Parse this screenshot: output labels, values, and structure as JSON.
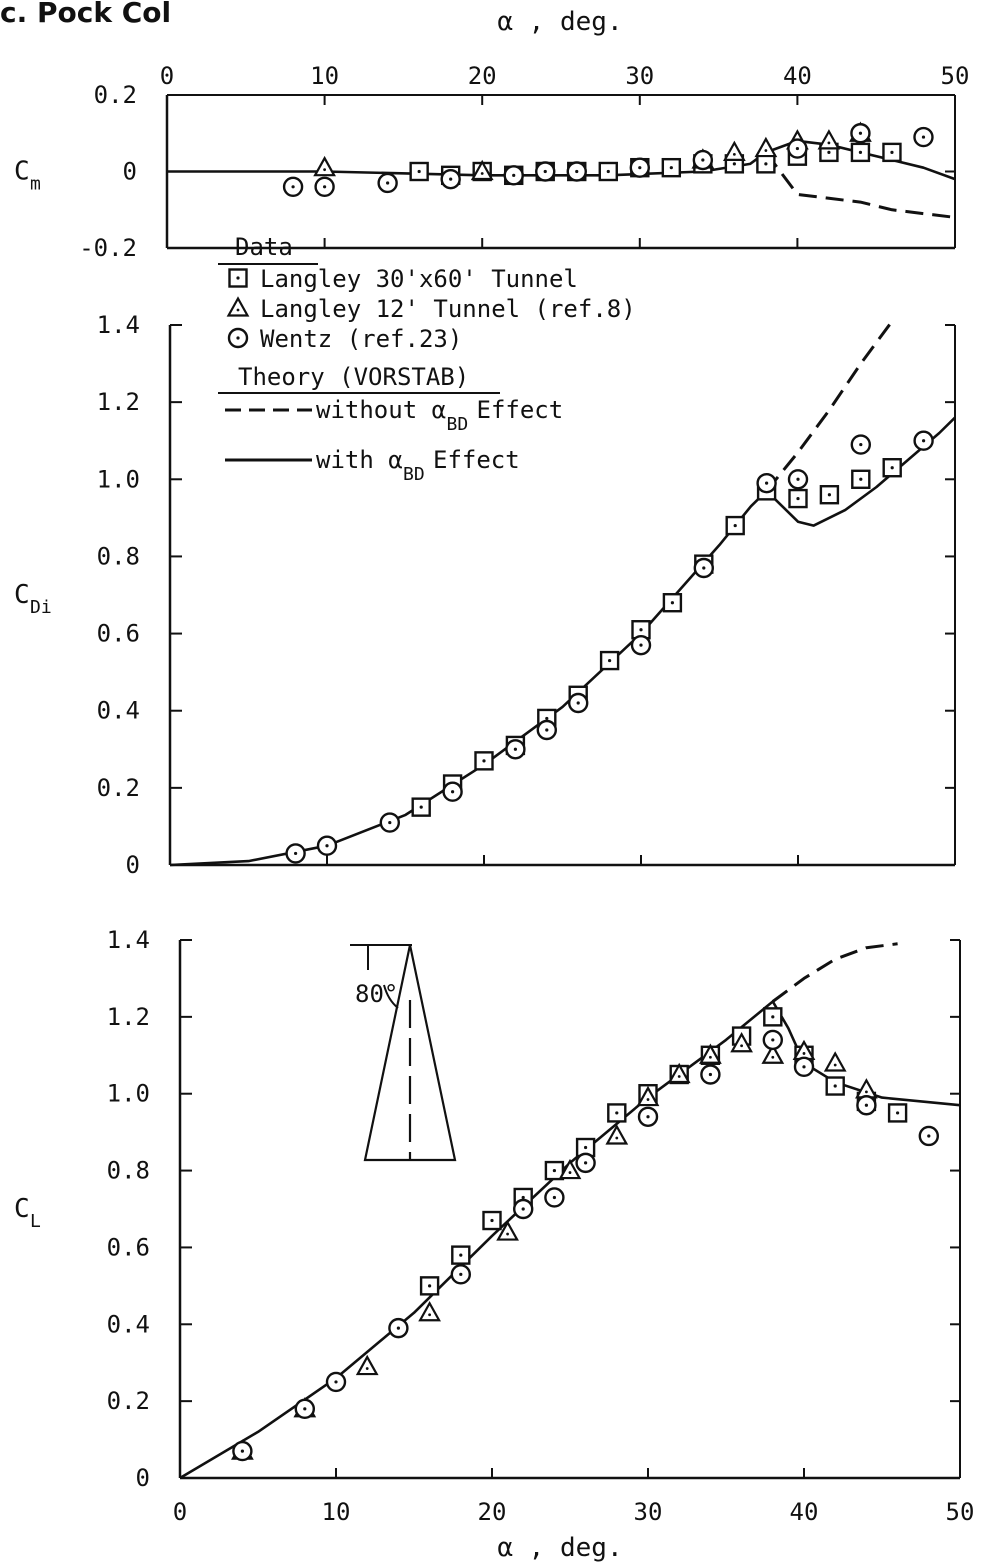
{
  "page_title": "c. Pock Col",
  "chart_data": [
    {
      "type": "scatter",
      "panel": "Cm",
      "ylabel": "C",
      "ylabel_sub": "m",
      "xlim": [
        0,
        50
      ],
      "ylim": [
        -0.2,
        0.2
      ],
      "yticks": [
        0.2,
        0,
        -0.2
      ],
      "yticklabels": [
        "0.2",
        "0",
        "-0.2"
      ],
      "xticks": [
        0,
        10,
        20,
        30,
        40,
        50
      ],
      "xlabel": "α , deg.",
      "series": [
        {
          "name": "Langley 30'x60' Tunnel",
          "marker": "square",
          "points": [
            [
              16,
              0.0
            ],
            [
              18,
              -0.01
            ],
            [
              20,
              0.0
            ],
            [
              22,
              -0.01
            ],
            [
              24,
              0.0
            ],
            [
              26,
              0.0
            ],
            [
              28,
              0.0
            ],
            [
              30,
              0.01
            ],
            [
              32,
              0.01
            ],
            [
              34,
              0.02
            ],
            [
              36,
              0.02
            ],
            [
              38,
              0.02
            ],
            [
              40,
              0.04
            ],
            [
              42,
              0.05
            ],
            [
              44,
              0.05
            ],
            [
              46,
              0.05
            ]
          ]
        },
        {
          "name": "Langley 12' Tunnel (ref.8)",
          "marker": "triangle",
          "points": [
            [
              10,
              0.01
            ],
            [
              20,
              0.0
            ],
            [
              34,
              0.03
            ],
            [
              36,
              0.05
            ],
            [
              38,
              0.06
            ],
            [
              40,
              0.08
            ],
            [
              42,
              0.08
            ],
            [
              44,
              0.1
            ]
          ]
        },
        {
          "name": "Wentz (ref.23)",
          "marker": "circle",
          "points": [
            [
              8,
              -0.04
            ],
            [
              10,
              -0.04
            ],
            [
              14,
              -0.03
            ],
            [
              18,
              -0.02
            ],
            [
              22,
              -0.01
            ],
            [
              24,
              0.0
            ],
            [
              26,
              0.0
            ],
            [
              30,
              0.01
            ],
            [
              34,
              0.03
            ],
            [
              40,
              0.06
            ],
            [
              44,
              0.1
            ],
            [
              48,
              0.09
            ]
          ]
        }
      ],
      "curves": [
        {
          "name": "with αBD Effect",
          "style": "solid",
          "points": [
            [
              0,
              0.0
            ],
            [
              10,
              0.0
            ],
            [
              20,
              -0.01
            ],
            [
              28,
              -0.01
            ],
            [
              34,
              0.0
            ],
            [
              37,
              0.02
            ],
            [
              38,
              0.05
            ],
            [
              40,
              0.08
            ],
            [
              42,
              0.07
            ],
            [
              44,
              0.05
            ],
            [
              46,
              0.03
            ],
            [
              48,
              0.01
            ],
            [
              50,
              -0.02
            ]
          ]
        },
        {
          "name": "without αBD Effect",
          "style": "dashed",
          "points": [
            [
              38,
              0.05
            ],
            [
              40,
              -0.06
            ],
            [
              42,
              -0.07
            ],
            [
              44,
              -0.08
            ],
            [
              46,
              -0.1
            ],
            [
              48,
              -0.11
            ],
            [
              50,
              -0.12
            ]
          ]
        }
      ]
    },
    {
      "type": "scatter",
      "panel": "CDi",
      "ylabel": "C",
      "ylabel_sub": "Di",
      "xlim": [
        0,
        50
      ],
      "ylim": [
        0,
        1.4
      ],
      "yticks": [
        1.4,
        1.2,
        1.0,
        0.8,
        0.6,
        0.4,
        0.2,
        0
      ],
      "yticklabels": [
        "1.4",
        "1.2",
        "1.0",
        "0.8",
        "0.6",
        "0.4",
        "0.2",
        "0"
      ],
      "series": [
        {
          "name": "Langley 30'x60' Tunnel",
          "marker": "square",
          "points": [
            [
              16,
              0.15
            ],
            [
              18,
              0.21
            ],
            [
              20,
              0.27
            ],
            [
              22,
              0.31
            ],
            [
              24,
              0.38
            ],
            [
              26,
              0.44
            ],
            [
              28,
              0.53
            ],
            [
              30,
              0.61
            ],
            [
              32,
              0.68
            ],
            [
              34,
              0.78
            ],
            [
              36,
              0.88
            ],
            [
              38,
              0.97
            ],
            [
              40,
              0.95
            ],
            [
              42,
              0.96
            ],
            [
              44,
              1.0
            ],
            [
              46,
              1.03
            ]
          ]
        },
        {
          "name": "Wentz (ref.23)",
          "marker": "circle",
          "points": [
            [
              8,
              0.03
            ],
            [
              10,
              0.05
            ],
            [
              14,
              0.11
            ],
            [
              18,
              0.19
            ],
            [
              22,
              0.3
            ],
            [
              24,
              0.35
            ],
            [
              26,
              0.42
            ],
            [
              30,
              0.57
            ],
            [
              34,
              0.77
            ],
            [
              38,
              0.99
            ],
            [
              40,
              1.0
            ],
            [
              44,
              1.09
            ],
            [
              48,
              1.1
            ]
          ]
        }
      ],
      "curves": [
        {
          "name": "with αBD Effect",
          "style": "solid",
          "points": [
            [
              0,
              0.0
            ],
            [
              5,
              0.01
            ],
            [
              10,
              0.05
            ],
            [
              15,
              0.13
            ],
            [
              20,
              0.26
            ],
            [
              25,
              0.41
            ],
            [
              30,
              0.6
            ],
            [
              35,
              0.83
            ],
            [
              37,
              0.93
            ],
            [
              38,
              0.97
            ],
            [
              39,
              0.93
            ],
            [
              40,
              0.89
            ],
            [
              41,
              0.88
            ],
            [
              43,
              0.92
            ],
            [
              45,
              0.98
            ],
            [
              47,
              1.05
            ],
            [
              49,
              1.12
            ],
            [
              50,
              1.16
            ]
          ]
        },
        {
          "name": "without αBD Effect",
          "style": "dashed",
          "points": [
            [
              38,
              0.97
            ],
            [
              40,
              1.07
            ],
            [
              42,
              1.18
            ],
            [
              44,
              1.3
            ],
            [
              46,
              1.41
            ]
          ]
        }
      ],
      "legend": {
        "data_heading": "Data",
        "entries": [
          {
            "marker": "square",
            "label": "Langley 30'x60' Tunnel"
          },
          {
            "marker": "triangle",
            "label": "Langley 12' Tunnel (ref.8)"
          },
          {
            "marker": "circle",
            "label": "Wentz (ref.23)"
          }
        ],
        "theory_heading": "Theory (VORSTAB)",
        "theory_entries": [
          {
            "style": "dashed",
            "label_prefix": "without α",
            "label_sub": "BD",
            "label_suffix": " Effect"
          },
          {
            "style": "solid",
            "label_prefix": "with α",
            "label_sub": "BD",
            "label_suffix": " Effect"
          }
        ],
        "placement": "top-left"
      }
    },
    {
      "type": "scatter",
      "panel": "CL",
      "ylabel": "C",
      "ylabel_sub": "L",
      "xlim": [
        0,
        50
      ],
      "ylim": [
        0,
        1.4
      ],
      "yticks": [
        1.4,
        1.2,
        1.0,
        0.8,
        0.6,
        0.4,
        0.2,
        0
      ],
      "yticklabels": [
        "1.4",
        "1.2",
        "1.0",
        "0.8",
        "0.6",
        "0.4",
        "0.2",
        "0"
      ],
      "xticks": [
        0,
        10,
        20,
        30,
        40,
        50
      ],
      "xlabel": "α , deg.",
      "series": [
        {
          "name": "Langley 30'x60' Tunnel",
          "marker": "square",
          "points": [
            [
              16,
              0.5
            ],
            [
              18,
              0.58
            ],
            [
              20,
              0.67
            ],
            [
              22,
              0.73
            ],
            [
              24,
              0.8
            ],
            [
              26,
              0.86
            ],
            [
              28,
              0.95
            ],
            [
              30,
              1.0
            ],
            [
              32,
              1.05
            ],
            [
              34,
              1.1
            ],
            [
              36,
              1.15
            ],
            [
              38,
              1.2
            ],
            [
              40,
              1.1
            ],
            [
              42,
              1.02
            ],
            [
              44,
              0.98
            ],
            [
              46,
              0.95
            ]
          ]
        },
        {
          "name": "Langley 12' Tunnel (ref.8)",
          "marker": "triangle",
          "points": [
            [
              4,
              0.07
            ],
            [
              8,
              0.18
            ],
            [
              12,
              0.29
            ],
            [
              16,
              0.43
            ],
            [
              21,
              0.64
            ],
            [
              25,
              0.8
            ],
            [
              28,
              0.89
            ],
            [
              30,
              0.99
            ],
            [
              32,
              1.05
            ],
            [
              34,
              1.1
            ],
            [
              36,
              1.13
            ],
            [
              38,
              1.1
            ],
            [
              40,
              1.11
            ],
            [
              42,
              1.08
            ],
            [
              44,
              1.01
            ]
          ]
        },
        {
          "name": "Wentz (ref.23)",
          "marker": "circle",
          "points": [
            [
              4,
              0.07
            ],
            [
              8,
              0.18
            ],
            [
              10,
              0.25
            ],
            [
              14,
              0.39
            ],
            [
              18,
              0.53
            ],
            [
              22,
              0.7
            ],
            [
              24,
              0.73
            ],
            [
              26,
              0.82
            ],
            [
              30,
              0.94
            ],
            [
              34,
              1.05
            ],
            [
              38,
              1.14
            ],
            [
              40,
              1.07
            ],
            [
              44,
              0.97
            ],
            [
              48,
              0.89
            ]
          ]
        }
      ],
      "curves": [
        {
          "name": "with αBD Effect",
          "style": "solid",
          "points": [
            [
              0,
              0.0
            ],
            [
              5,
              0.12
            ],
            [
              10,
              0.26
            ],
            [
              15,
              0.43
            ],
            [
              20,
              0.63
            ],
            [
              25,
              0.82
            ],
            [
              30,
              0.99
            ],
            [
              35,
              1.14
            ],
            [
              38,
              1.24
            ],
            [
              39,
              1.17
            ],
            [
              40,
              1.08
            ],
            [
              42,
              1.03
            ],
            [
              45,
              0.99
            ],
            [
              50,
              0.97
            ]
          ]
        },
        {
          "name": "without αBD Effect",
          "style": "dashed",
          "points": [
            [
              38,
              1.24
            ],
            [
              40,
              1.3
            ],
            [
              42,
              1.35
            ],
            [
              44,
              1.38
            ],
            [
              46,
              1.39
            ]
          ]
        }
      ],
      "planform_label": "80°"
    }
  ]
}
